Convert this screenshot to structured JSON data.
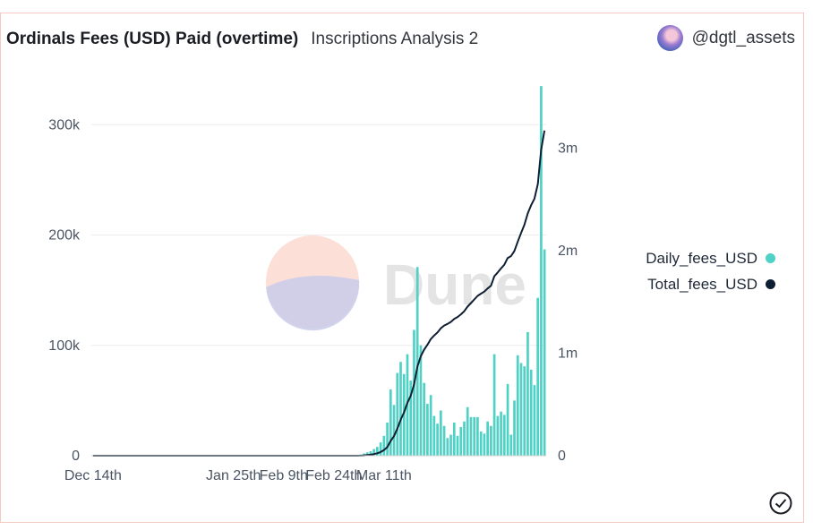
{
  "header": {
    "title": "Ordinals Fees (USD) Paid (overtime)",
    "subtitle": "Inscriptions Analysis 2",
    "user": "@dgtl_assets"
  },
  "watermark": {
    "text": "Dune"
  },
  "icons": {
    "status": "check-circle-icon",
    "avatar": "avatar"
  },
  "chart_data": {
    "type": "bar",
    "title": "Ordinals Fees (USD) Paid (overtime)",
    "x_tick_labels": [
      "Dec 14th",
      "Jan 25th",
      "Feb 9th",
      "Feb 24th",
      "Mar 11th"
    ],
    "y_left": {
      "ylim": [
        0,
        340000
      ],
      "ticks": [
        0,
        100000,
        200000,
        300000
      ],
      "tick_labels": [
        "0",
        "100k",
        "200k",
        "300k"
      ]
    },
    "y_right": {
      "ylim": [
        0,
        3660000
      ],
      "ticks": [
        0,
        1000000,
        2000000,
        3000000
      ],
      "tick_labels": [
        "0",
        "1m",
        "2m",
        "3m"
      ]
    },
    "legend": {
      "position": "right"
    },
    "grid": true,
    "series": [
      {
        "name": "Daily_fees_USD",
        "type": "bar",
        "axis": "left",
        "color": "#4fd1c5",
        "values": [
          0,
          0,
          0,
          0,
          0,
          0,
          0,
          0,
          0,
          0,
          0,
          0,
          0,
          0,
          0,
          0,
          0,
          0,
          0,
          0,
          0,
          0,
          0,
          0,
          0,
          0,
          0,
          0,
          0,
          0,
          0,
          0,
          0,
          0,
          0,
          0,
          0,
          0,
          0,
          0,
          0,
          0,
          0,
          0,
          0,
          0,
          0,
          0,
          0,
          0,
          0,
          0,
          0,
          0,
          0,
          0,
          0,
          0,
          0,
          0,
          0,
          0,
          0,
          0,
          0,
          0,
          0,
          0,
          0,
          0,
          0,
          0,
          0,
          0,
          0,
          0,
          0,
          0,
          0,
          0,
          1000,
          2000,
          3000,
          4000,
          6000,
          8000,
          12000,
          18000,
          30000,
          60000,
          46000,
          75000,
          85000,
          74000,
          92000,
          68000,
          114000,
          171000,
          100000,
          66000,
          47000,
          55000,
          36000,
          29000,
          41000,
          27000,
          16000,
          19000,
          30000,
          18000,
          26000,
          31000,
          44000,
          35000,
          35000,
          35000,
          22000,
          20000,
          31000,
          27000,
          92000,
          36000,
          40000,
          37000,
          65000,
          19000,
          50000,
          91000,
          84000,
          81000,
          112000,
          78000,
          64000,
          143000,
          335000,
          187000
        ]
      },
      {
        "name": "Total_fees_USD",
        "type": "line",
        "axis": "right",
        "color": "#0f1f33",
        "values": [
          0,
          0,
          0,
          0,
          0,
          0,
          0,
          0,
          0,
          0,
          0,
          0,
          0,
          0,
          0,
          0,
          0,
          0,
          0,
          0,
          0,
          0,
          0,
          0,
          0,
          0,
          0,
          0,
          0,
          0,
          0,
          0,
          0,
          0,
          0,
          0,
          0,
          0,
          0,
          0,
          0,
          0,
          0,
          0,
          0,
          0,
          0,
          0,
          0,
          0,
          0,
          0,
          0,
          0,
          0,
          0,
          0,
          0,
          0,
          0,
          0,
          0,
          0,
          0,
          0,
          0,
          0,
          0,
          0,
          0,
          0,
          0,
          0,
          0,
          0,
          0,
          0,
          0,
          0,
          0,
          1000,
          3000,
          6000,
          10000,
          16000,
          24000,
          36000,
          54000,
          84000,
          144000,
          190000,
          265000,
          350000,
          424000,
          516000,
          584000,
          698000,
          869000,
          969000,
          1035000,
          1082000,
          1137000,
          1173000,
          1202000,
          1243000,
          1270000,
          1286000,
          1305000,
          1335000,
          1353000,
          1379000,
          1410000,
          1454000,
          1489000,
          1524000,
          1559000,
          1581000,
          1601000,
          1632000,
          1659000,
          1751000,
          1787000,
          1827000,
          1864000,
          1929000,
          1948000,
          1998000,
          2089000,
          2173000,
          2254000,
          2366000,
          2444000,
          2508000,
          2651000,
          2986000,
          3173000
        ]
      }
    ]
  }
}
